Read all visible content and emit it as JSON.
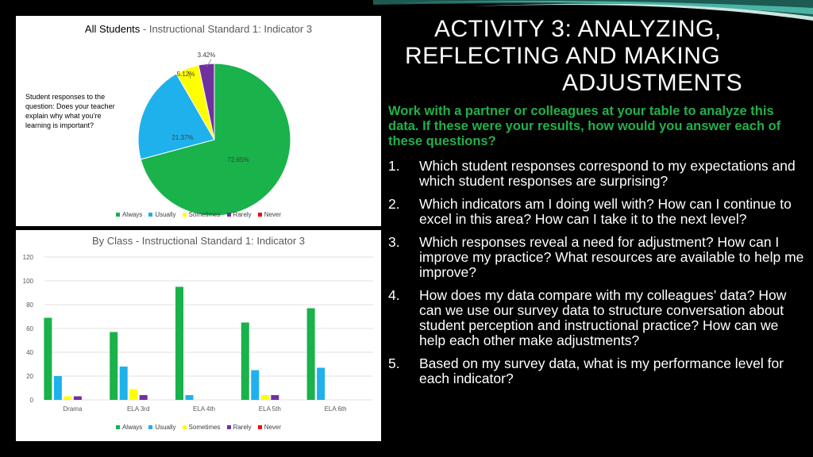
{
  "slide": {
    "title_lines": [
      "ACTIVITY 3: ANALYZING,",
      "REFLECTING AND MAKING",
      "ADJUSTMENTS"
    ],
    "intro": "Work with a partner or colleagues at your table to analyze this data.  If these were your results, how would you answer each of these questions?",
    "questions": [
      {
        "num": "1.",
        "text": "Which student responses correspond to my expectations and which student responses are surprising?"
      },
      {
        "num": "2.",
        "text": "Which indicators am I doing well with?  How can I continue to excel in this area?  How can I take it to the next level?"
      },
      {
        "num": "3.",
        "text": "Which responses reveal a need for adjustment?  How can I improve my practice?  What resources are available to help me improve?"
      },
      {
        "num": "4.",
        "text": "How does my data compare with my colleagues’ data?  How can we use our survey data to structure conversation about student perception and instructional practice?  How can we help each other make adjustments?"
      },
      {
        "num": "5.",
        "text": "Based on my survey data, what is my performance level for each indicator?"
      }
    ]
  },
  "pie_panel": {
    "title_main": "All Students",
    "title_sub": " - Instructional Standard 1: Indicator 3",
    "side_note": "Student responses to the question: Does your teacher explain why what you’re learning is important?"
  },
  "bar_panel": {
    "title": "By Class - Instructional Standard 1: Indicator 3"
  },
  "colors": {
    "Always": "#19b24b",
    "Usually": "#1fb1ec",
    "Sometimes": "#ffff00",
    "Rarely": "#7030a0",
    "Never": "#ff0000"
  },
  "chart_data": [
    {
      "type": "pie",
      "title": "All Students - Instructional Standard 1: Indicator 3",
      "categories": [
        "Always",
        "Usually",
        "Sometimes",
        "Rarely",
        "Never"
      ],
      "values": [
        72.65,
        21.37,
        5.12,
        3.42,
        0
      ],
      "labels": [
        "72.65%",
        "21.37%",
        "5.12%",
        "3.42%",
        ""
      ],
      "legend": "bottom"
    },
    {
      "type": "bar",
      "title": "By Class - Instructional Standard 1: Indicator 3",
      "categories": [
        "Drama",
        "ELA 3rd",
        "ELA 4th",
        "ELA 5th",
        "ELA 6th"
      ],
      "series": [
        {
          "name": "Always",
          "values": [
            69,
            57,
            95,
            65,
            77
          ]
        },
        {
          "name": "Usually",
          "values": [
            20,
            28,
            4,
            25,
            27
          ]
        },
        {
          "name": "Sometimes",
          "values": [
            3,
            9,
            0,
            4,
            0
          ]
        },
        {
          "name": "Rarely",
          "values": [
            3,
            4,
            0,
            4,
            0
          ]
        },
        {
          "name": "Never",
          "values": [
            0,
            0,
            0,
            0,
            0
          ]
        }
      ],
      "ylim": [
        0,
        120
      ],
      "yticks": [
        "0",
        "20",
        "40",
        "60",
        "80",
        "100",
        "120"
      ],
      "grid": true,
      "legend": "bottom"
    }
  ]
}
